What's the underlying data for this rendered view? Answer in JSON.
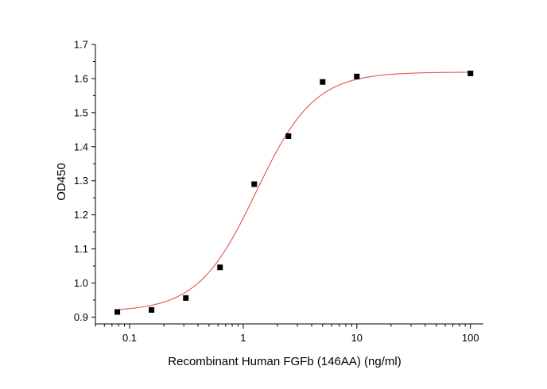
{
  "chart_data": {
    "type": "scatter",
    "title": "",
    "xlabel": "Recombinant Human FGFb (146AA) (ng/ml)",
    "ylabel": "OD450",
    "x_scale": "log",
    "xlim": [
      0.05,
      130
    ],
    "ylim": [
      0.88,
      1.7
    ],
    "x_ticks": [
      0.1,
      1,
      10,
      100
    ],
    "x_tick_labels": [
      "0.1",
      "1",
      "10",
      "100"
    ],
    "y_ticks": [
      0.9,
      1.0,
      1.1,
      1.2,
      1.3,
      1.4,
      1.5,
      1.6,
      1.7
    ],
    "y_tick_labels": [
      "0.9",
      "1.0",
      "1.1",
      "1.2",
      "1.3",
      "1.4",
      "1.5",
      "1.6",
      "1.7"
    ],
    "grid": false,
    "legend": "none",
    "series": [
      {
        "type": "scatter",
        "color": "#000000",
        "marker": "square",
        "x": [
          0.078,
          0.156,
          0.3125,
          0.625,
          1.25,
          2.5,
          5,
          10,
          100
        ],
        "y": [
          0.915,
          0.921,
          0.956,
          1.046,
          1.29,
          1.431,
          1.59,
          1.606,
          1.615
        ]
      },
      {
        "type": "line",
        "color": "#e05454",
        "fit": "four-parameter-logistic",
        "bottom": 0.916,
        "top": 1.619,
        "ec50": 1.3,
        "hill": 1.7
      }
    ]
  }
}
